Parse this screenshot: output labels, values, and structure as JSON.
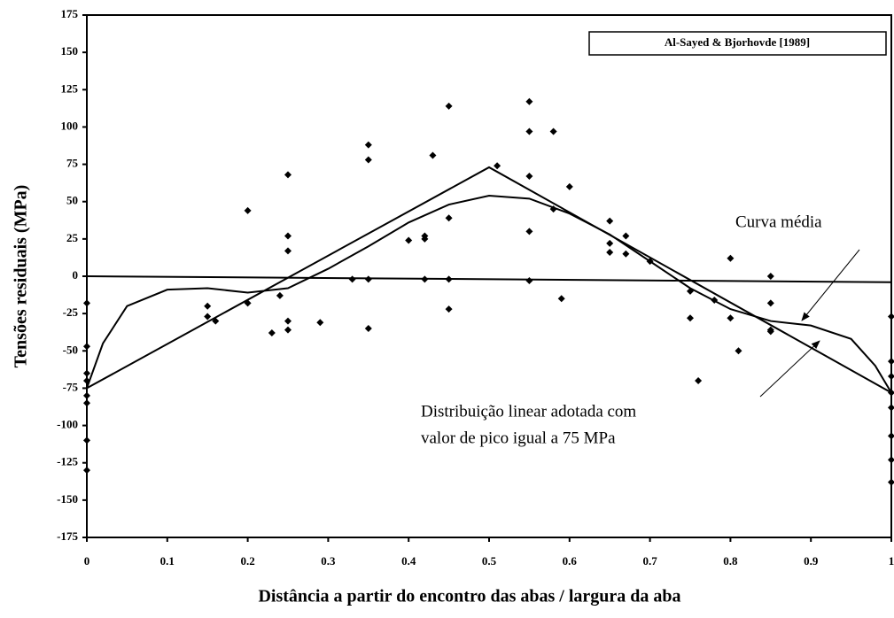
{
  "chart_data": {
    "type": "scatter",
    "xlabel": "Distância a partir do encontro das abas / largura da aba",
    "ylabel": "Tensões residuais (MPa)",
    "legend_label": "Al-Sayed & Bjorhovde [1989]",
    "annotations": [
      "Curva média",
      "Distribuição linear adotada com",
      "valor de pico igual a 75 MPa"
    ],
    "xlim": [
      0,
      1
    ],
    "ylim": [
      -175,
      175
    ],
    "xticks": [
      0,
      0.1,
      0.2,
      0.3,
      0.4,
      0.5,
      0.6,
      0.7,
      0.8,
      0.9,
      1
    ],
    "yticks": [
      -175,
      -150,
      -125,
      -100,
      -75,
      -50,
      -25,
      0,
      25,
      50,
      75,
      100,
      125,
      150,
      175
    ],
    "color": "#000000",
    "points": {
      "x": [
        0,
        0,
        0,
        0,
        0,
        0,
        0,
        0,
        0.15,
        0.15,
        0.16,
        0.2,
        0.2,
        0.23,
        0.24,
        0.25,
        0.25,
        0.25,
        0.25,
        0.25,
        0.29,
        0.33,
        0.35,
        0.35,
        0.35,
        0.35,
        0.4,
        0.42,
        0.42,
        0.42,
        0.43,
        0.45,
        0.45,
        0.45,
        0.45,
        0.51,
        0.55,
        0.55,
        0.55,
        0.55,
        0.55,
        0.58,
        0.58,
        0.59,
        0.6,
        0.65,
        0.65,
        0.65,
        0.67,
        0.67,
        0.7,
        0.75,
        0.75,
        0.76,
        0.78,
        0.8,
        0.8,
        0.81,
        0.85,
        0.85,
        0.85,
        0.85,
        1,
        1,
        1,
        1,
        1,
        1,
        1,
        1
      ],
      "y": [
        -18,
        -47,
        -65,
        -70,
        -80,
        -85,
        -110,
        -130,
        -20,
        -27,
        -30,
        44,
        -18,
        -38,
        -13,
        68,
        27,
        17,
        -30,
        -36,
        -31,
        -2,
        88,
        78,
        -2,
        -35,
        24,
        27,
        25,
        -2,
        81,
        114,
        39,
        -2,
        -22,
        74,
        117,
        97,
        67,
        30,
        -3,
        97,
        45,
        -15,
        60,
        37,
        22,
        16,
        27,
        15,
        10,
        -10,
        -28,
        -70,
        -16,
        12,
        -28,
        -50,
        0,
        -18,
        -37,
        -36,
        -27,
        -57,
        -67,
        -78,
        -88,
        -107,
        -123,
        -138
      ]
    },
    "series": [
      {
        "color": "#000000",
        "x": [
          0,
          0.5,
          1
        ],
        "values": [
          -75,
          73,
          -78
        ]
      },
      {
        "color": "#000000",
        "x": [
          0,
          1
        ],
        "values": [
          0,
          -4
        ]
      },
      {
        "color": "#000000",
        "x": [
          0,
          0.02,
          0.05,
          0.1,
          0.15,
          0.2,
          0.25,
          0.3,
          0.35,
          0.4,
          0.45,
          0.5,
          0.55,
          0.6,
          0.65,
          0.7,
          0.75,
          0.8,
          0.85,
          0.9,
          0.95,
          0.98,
          1
        ],
        "values": [
          -75,
          -45,
          -20,
          -9,
          -8,
          -11,
          -8,
          5,
          20,
          36,
          48,
          54,
          52,
          42,
          28,
          10,
          -8,
          -22,
          -30,
          -33,
          -42,
          -60,
          -78
        ]
      }
    ]
  }
}
